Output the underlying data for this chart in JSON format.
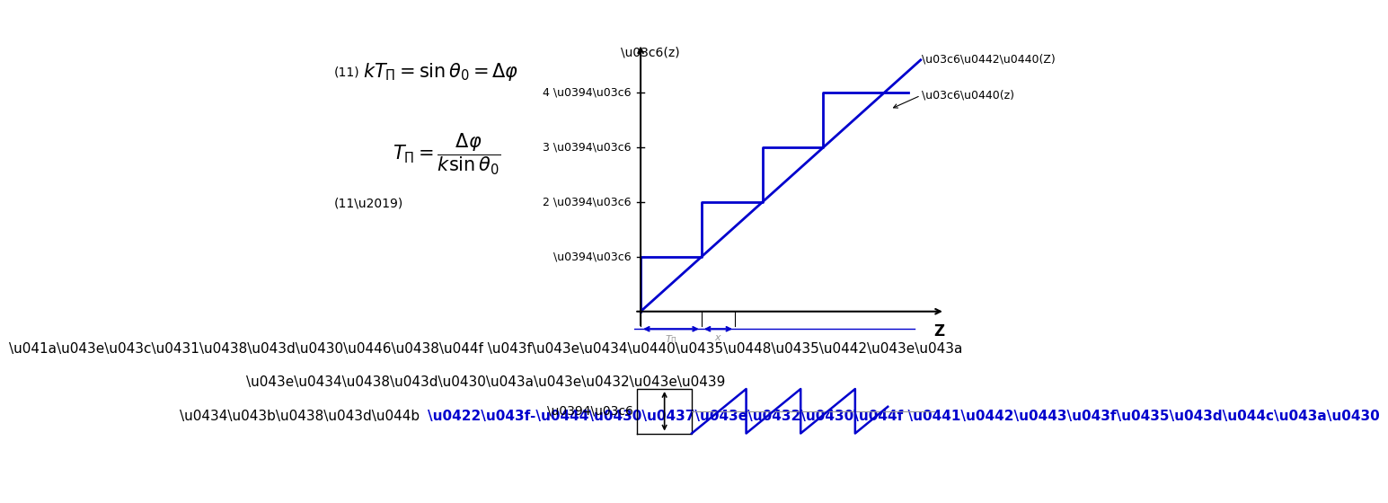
{
  "fig_width": 7.2,
  "fig_height": 5.4,
  "bg_color": "#ffffff",
  "blue_color": "#0000CD",
  "black_color": "#000000",
  "gray_color": "#999999",
  "eq11_label": "(11)",
  "eq11_text": "$kT_{\\Pi} = \\sin\\theta_0 = \\Delta\\varphi$",
  "eq11p_label": "(11\\u2019)",
  "eq11p_text": "$T_{\\Pi} = \\dfrac{\\Delta\\varphi}{k\\sin\\theta_0}$",
  "bottom_text_line1": "\\u041a\\u043e\\u043c\\u0431\\u0438\\u043d\\u0430\\u0446\\u0438\\u044f \\u043f\\u043e\\u0434\\u0440\\u0435\\u0448\\u0435\\u0442\\u043e\\u043a",
  "bottom_text_line2": "\\u043e\\u0434\\u0438\\u043d\\u0430\\u043a\\u043e\\u0432\\u043e\\u0439",
  "bottom_text_line3_black": "\\u0434\\u043b\\u0438\\u043d\\u044b ",
  "bottom_text_line3_blue": "\\u0422\\u043f-\\u0444\\u0430\\u0437\\u043e\\u0432\\u0430\\u044f \\u0441\\u0442\\u0443\\u043f\\u0435\\u043d\\u044c\\u043a\\u0430",
  "upper_ytick_labels": [
    "\\u0394\\u03c6",
    "2 \\u0394\\u03c6",
    "3 \\u0394\\u03c6",
    "4 \\u0394\\u03c6"
  ],
  "upper_ytick_vals": [
    1,
    2,
    3,
    4
  ],
  "upper_xlabel": "Z",
  "upper_ylabel": "\\u03c6(z)",
  "upper_label_phitr": "\\u03c6\\u0442\\u0440(Z)",
  "upper_label_phip": "\\u03c6\\u0440(z)",
  "lower_ylabel": "\\u0394\\u03c6",
  "Tp": 1.0,
  "n_steps": 4
}
